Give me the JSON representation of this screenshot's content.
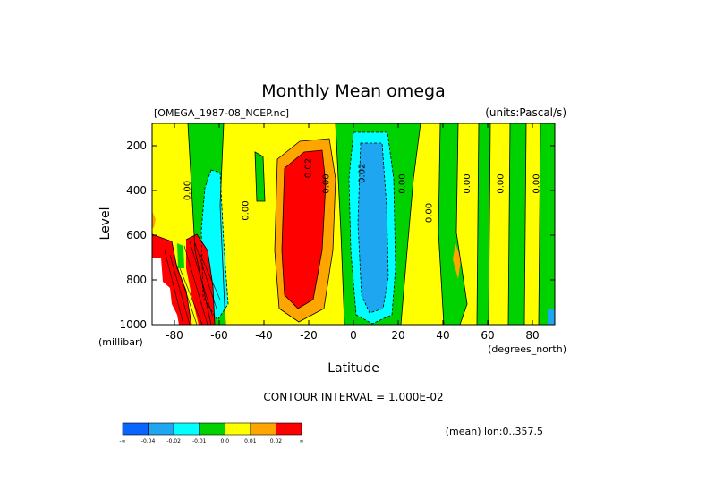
{
  "chart_data": {
    "type": "contour",
    "title": "Monthly Mean omega",
    "source_label": "[OMEGA_1987-08_NCEP.nc]",
    "units_label": "(units:Pascal/s)",
    "xlabel": "Latitude",
    "x_units": "(degrees_north)",
    "ylabel": "Level",
    "y_units": "(millibar)",
    "xlim": [
      -90,
      90
    ],
    "ylim": [
      1000,
      100
    ],
    "x_ticks": [
      -80,
      -60,
      -40,
      -20,
      0,
      20,
      40,
      60,
      80
    ],
    "y_ticks": [
      200,
      400,
      600,
      800,
      1000
    ],
    "contour_interval_text": "CONTOUR INTERVAL = 1.000E-02",
    "footer_text": "(mean) lon:0..357.5",
    "colorbar": {
      "colors": [
        "#0a64ff",
        "#1ea6f0",
        "#00ffff",
        "#00d200",
        "#ffff00",
        "#ffa500",
        "#ff0000"
      ],
      "labels": [
        "-∞",
        "-0.04",
        "-0.02",
        "-0.01",
        "0.0",
        "0.01",
        "0.02",
        "∞"
      ]
    },
    "contour_labels": [
      {
        "text": "0.00",
        "lat": -73,
        "level": 400
      },
      {
        "text": "0.00",
        "lat": -47,
        "level": 490
      },
      {
        "text": "0.02",
        "lat": -19,
        "level": 300
      },
      {
        "text": "0.00",
        "lat": -11,
        "level": 370
      },
      {
        "text": "-0.02",
        "lat": 5,
        "level": 330
      },
      {
        "text": "0.00",
        "lat": 23,
        "level": 370
      },
      {
        "text": "0.00",
        "lat": 35,
        "level": 500
      },
      {
        "text": "0.00",
        "lat": 52,
        "level": 370
      },
      {
        "text": "0.00",
        "lat": 67,
        "level": 370
      },
      {
        "text": "0.00",
        "lat": 83,
        "level": 370
      }
    ]
  }
}
